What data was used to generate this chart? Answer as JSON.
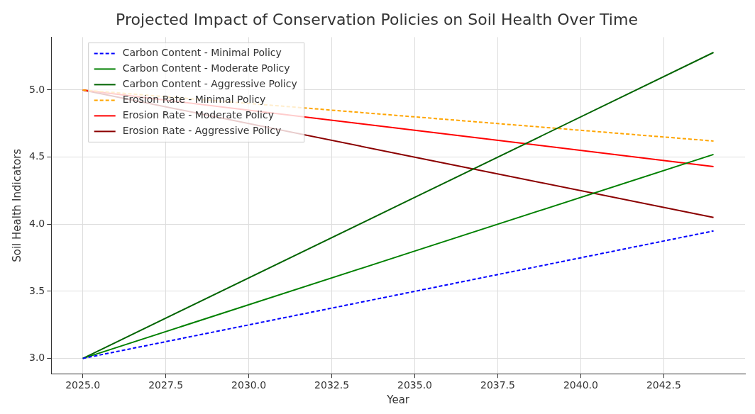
{
  "chart_data": {
    "type": "line",
    "title": "Projected Impact of Conservation Policies on Soil Health Over Time",
    "xlabel": "Year",
    "ylabel": "Soil Health Indicators",
    "xlim": [
      2024.05,
      2044.95
    ],
    "xticks": [
      {
        "value": 2025,
        "label": "2025.0"
      },
      {
        "value": 2027.5,
        "label": "2027.5"
      },
      {
        "value": 2030,
        "label": "2030.0"
      },
      {
        "value": 2032.5,
        "label": "2032.5"
      },
      {
        "value": 2035,
        "label": "2035.0"
      },
      {
        "value": 2037.5,
        "label": "2037.5"
      },
      {
        "value": 2040,
        "label": "2040.0"
      },
      {
        "value": 2042.5,
        "label": "2042.5"
      }
    ],
    "ylim": [
      2.886,
      5.394
    ],
    "yticks": [
      {
        "value": 3,
        "label": "3.0"
      },
      {
        "value": 3.5,
        "label": "3.5"
      },
      {
        "value": 4,
        "label": "4.0"
      },
      {
        "value": 4.5,
        "label": "4.5"
      },
      {
        "value": 5,
        "label": "5.0"
      }
    ],
    "grid": true,
    "legend": "top left",
    "marker": "none",
    "x": [
      2025,
      2035,
      2044
    ],
    "series": [
      {
        "name": "Carbon Content - Minimal Policy",
        "color": "#0000ff",
        "line_style": "dashed",
        "values": [
          3.0,
          3.5,
          3.95
        ]
      },
      {
        "name": "Carbon Content - Moderate Policy",
        "color": "#008000",
        "line_style": "solid",
        "values": [
          3.0,
          3.8,
          4.52
        ]
      },
      {
        "name": "Carbon Content - Aggressive Policy",
        "color": "#006400",
        "line_style": "solid",
        "values": [
          3.0,
          4.2,
          5.28
        ]
      },
      {
        "name": "Erosion Rate - Minimal Policy",
        "color": "#ffa500",
        "line_style": "dashed",
        "values": [
          5.0,
          4.8,
          4.62
        ]
      },
      {
        "name": "Erosion Rate - Moderate Policy",
        "color": "#ff0000",
        "line_style": "solid",
        "values": [
          5.0,
          4.7,
          4.43
        ]
      },
      {
        "name": "Erosion Rate - Aggressive Policy",
        "color": "#8b0000",
        "line_style": "solid",
        "values": [
          5.0,
          4.5,
          4.05
        ]
      }
    ]
  }
}
